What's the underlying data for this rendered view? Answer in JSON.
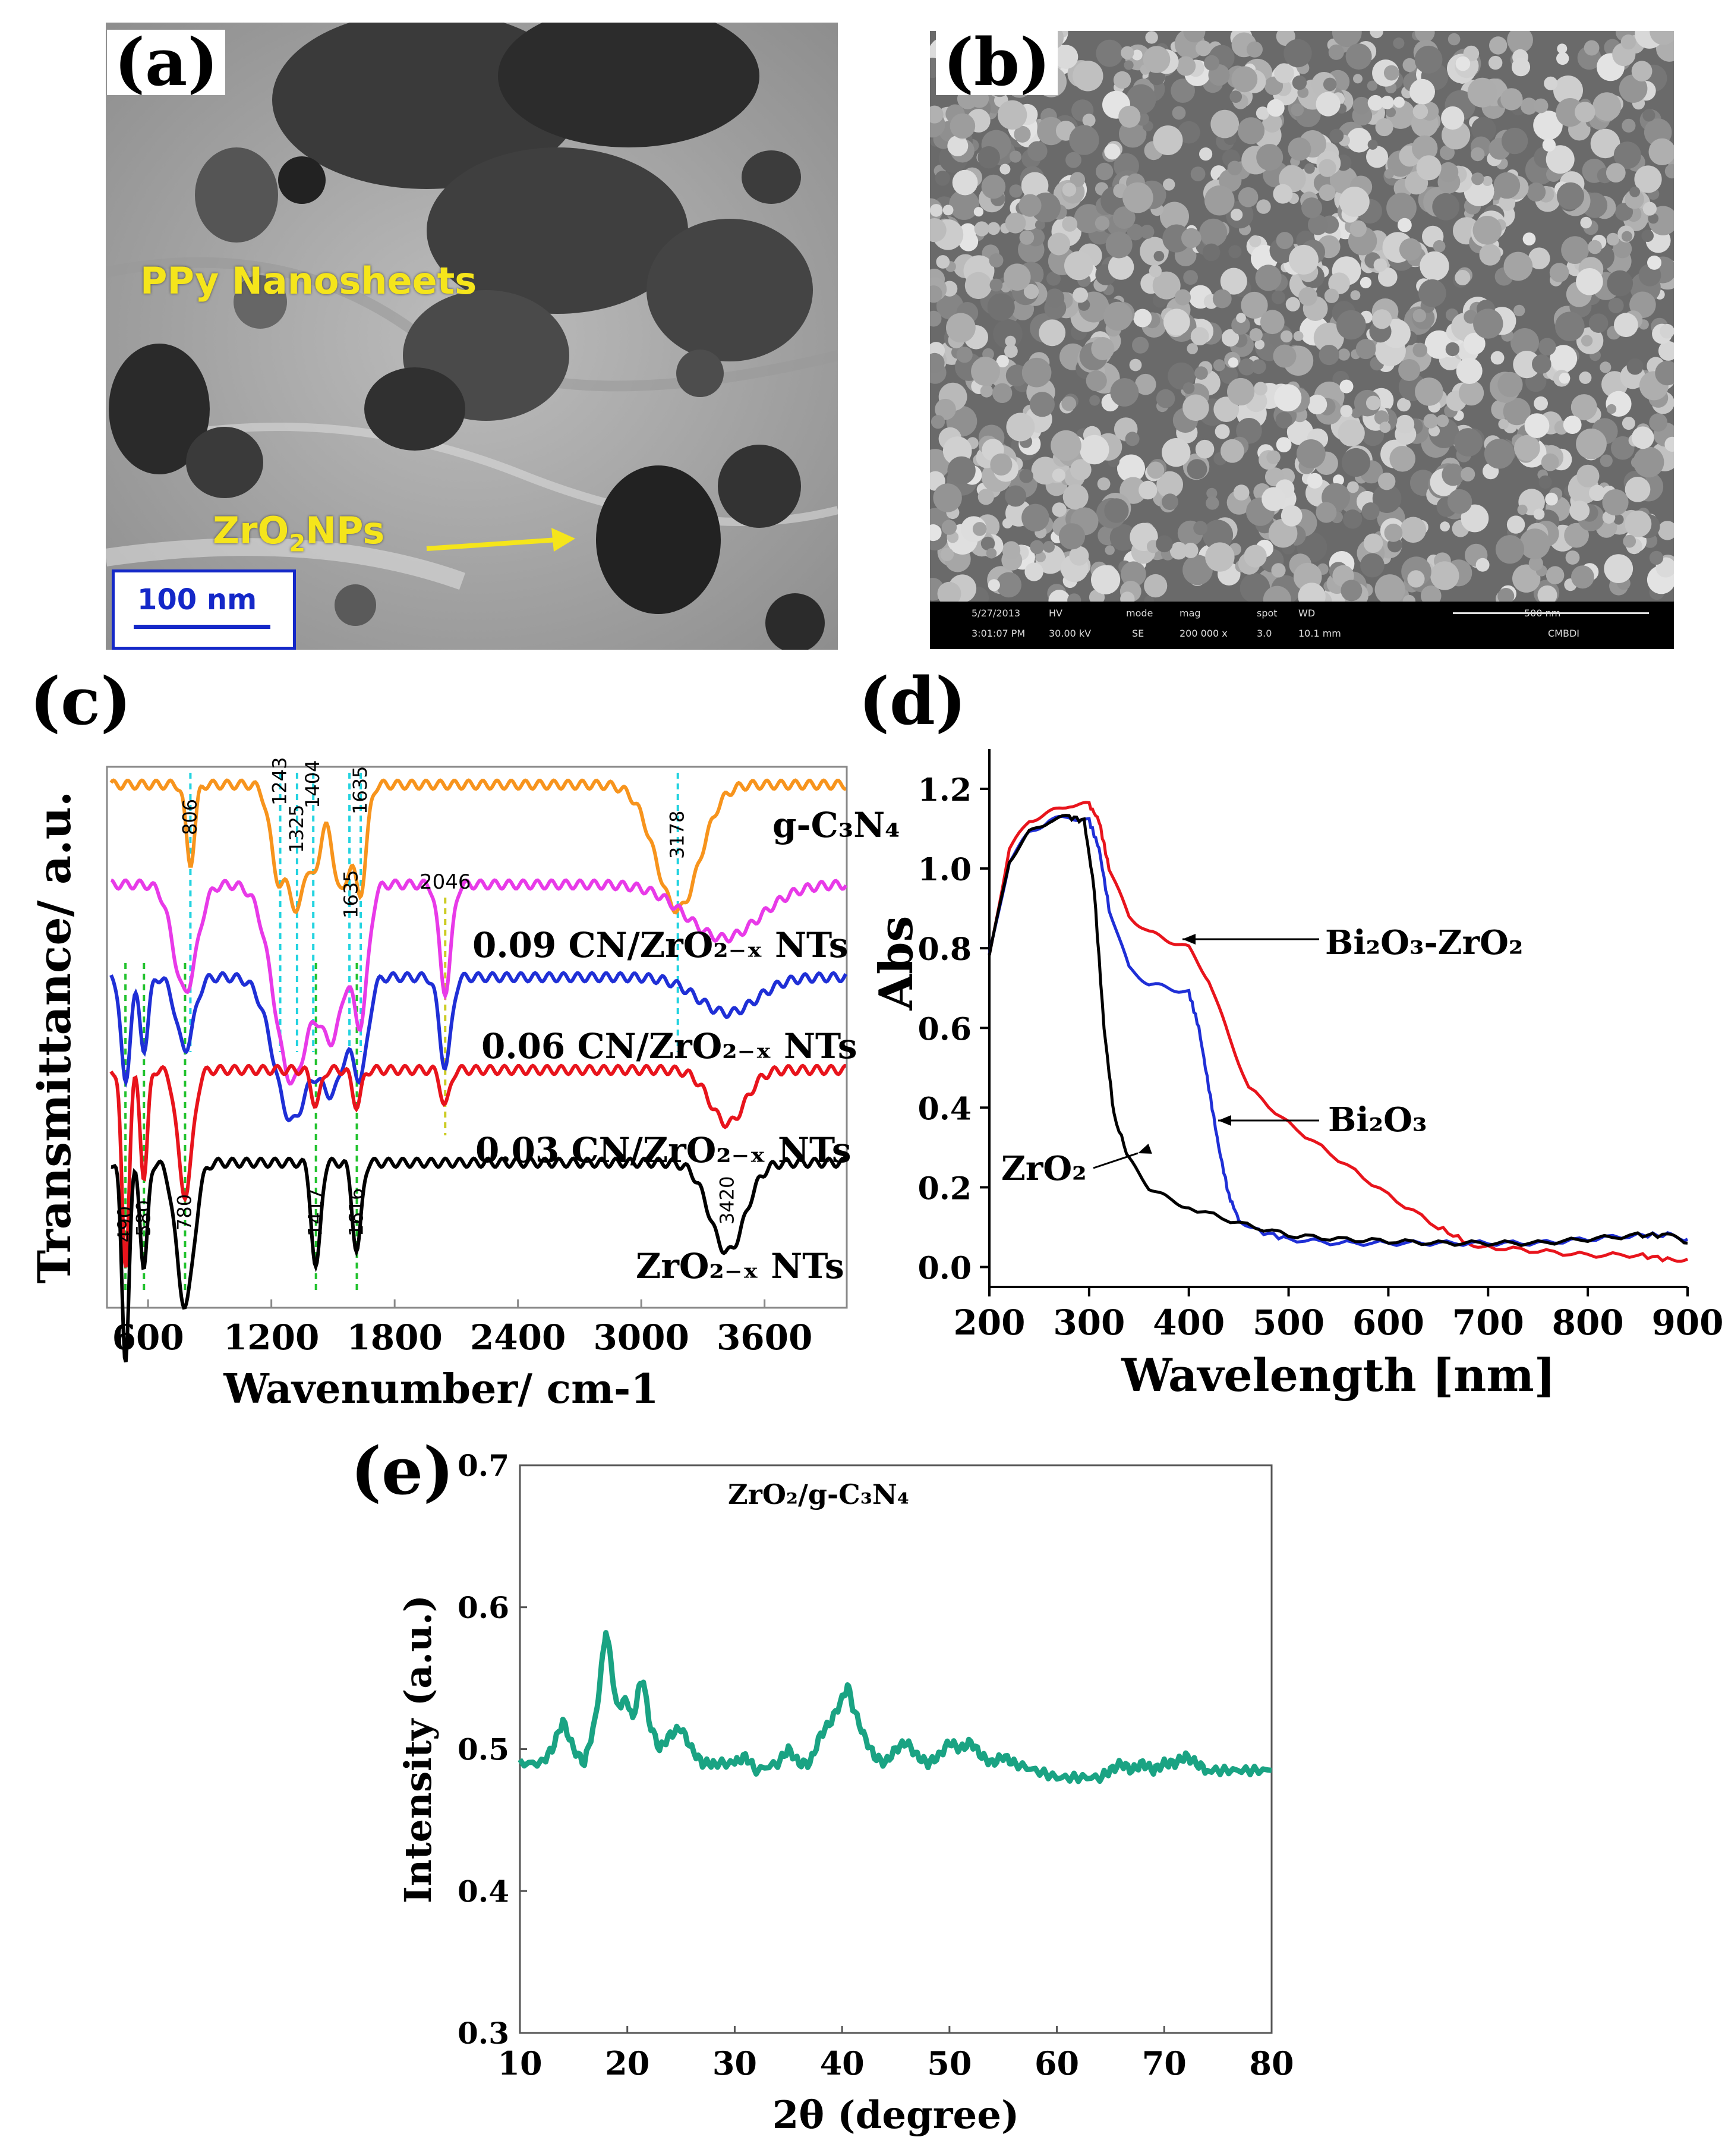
{
  "panels": {
    "a": {
      "letter": "(a)",
      "label_sheets": "PPy Nanosheets",
      "label_np_main": "ZrO",
      "label_np_sub": "2",
      "label_np_tail": "NPs",
      "scale_bar": "100 nm"
    },
    "b": {
      "letter": "(b)",
      "info_bar": [
        "5/27/2013",
        "HV",
        "mode",
        "mag",
        "spot",
        "WD",
        "500 nm",
        "3:01:07 PM",
        "30.00 kV",
        "SE",
        "200 000 x",
        "3.0",
        "10.1 mm",
        "CMBDI"
      ]
    },
    "c": {
      "letter": "(c)"
    },
    "d": {
      "letter": "(d)"
    },
    "e": {
      "letter": "(e)"
    }
  },
  "chart_data": [
    {
      "id": "c",
      "type": "line",
      "xlabel": "Wavenumber/ cm-1",
      "ylabel": "Transmittance/ a.u.",
      "xlim": [
        400,
        4000
      ],
      "xticks": [
        600,
        1200,
        1800,
        2400,
        3000,
        3600
      ],
      "colors": {
        "g-C3N4": "#f7941d",
        "0.09 CN/ZrO2-x NTs": "#e83ae8",
        "0.06 CN/ZrO2-x NTs": "#1f2fd6",
        "0.03 CN/ZrO2-x NTs": "#e8141c",
        "ZrO2-x NTs": "#000000",
        "cyan_lines": "#22d3e0",
        "green_lines": "#22c22e",
        "yellow_lines": "#cccc22"
      },
      "series": [
        {
          "name": "g-C3N4",
          "label": "g-C₃N₄",
          "baseline": 1.0,
          "dips": [
            [
              806,
              0.22,
              30
            ],
            [
              1243,
              0.28,
              60
            ],
            [
              1325,
              0.3,
              40
            ],
            [
              1404,
              0.25,
              50
            ],
            [
              1540,
              0.3,
              60
            ],
            [
              1635,
              0.28,
              40
            ],
            [
              3178,
              0.35,
              150
            ]
          ]
        },
        {
          "name": "0.09 CN/ZrO2-x NTs",
          "label": "0.09 CN/ZrO₂₋ₓ NTs",
          "baseline": 0.72,
          "dips": [
            [
              780,
              0.3,
              80
            ],
            [
              1300,
              0.55,
              120
            ],
            [
              1500,
              0.4,
              90
            ],
            [
              1635,
              0.35,
              50
            ],
            [
              2046,
              0.3,
              40
            ],
            [
              3400,
              0.15,
              250
            ]
          ]
        },
        {
          "name": "0.06 CN/ZrO2-x NTs",
          "label": "0.06 CN/ZrO₂₋ₓ NTs",
          "baseline": 0.46,
          "dips": [
            [
              490,
              0.3,
              30
            ],
            [
              580,
              0.2,
              30
            ],
            [
              780,
              0.2,
              60
            ],
            [
              1300,
              0.4,
              120
            ],
            [
              1500,
              0.3,
              90
            ],
            [
              1635,
              0.25,
              50
            ],
            [
              2046,
              0.25,
              40
            ],
            [
              3420,
              0.1,
              200
            ]
          ]
        },
        {
          "name": "0.03 CN/ZrO2-x NTs",
          "label": "0.03 CN/ZrO₂₋ₓ NTs",
          "baseline": 0.2,
          "dips": [
            [
              490,
              0.55,
              25
            ],
            [
              580,
              0.3,
              25
            ],
            [
              780,
              0.35,
              50
            ],
            [
              1417,
              0.1,
              30
            ],
            [
              1616,
              0.1,
              30
            ],
            [
              2046,
              0.1,
              30
            ],
            [
              3420,
              0.15,
              120
            ]
          ]
        },
        {
          "name": "ZrO2-x NTs",
          "label": "ZrO₂₋ₓ NTs",
          "baseline": -0.06,
          "dips": [
            [
              490,
              0.55,
              25
            ],
            [
              580,
              0.3,
              25
            ],
            [
              780,
              0.4,
              60
            ],
            [
              1417,
              0.3,
              30
            ],
            [
              1616,
              0.25,
              30
            ],
            [
              3420,
              0.25,
              120
            ]
          ]
        }
      ],
      "annotations_top": [
        "806",
        "1243",
        "1325",
        "1404",
        "1635",
        "1635",
        "3178",
        "2046"
      ],
      "annotations_bottom": [
        "490",
        "580",
        "780",
        "1417",
        "1616",
        "3420"
      ]
    },
    {
      "id": "d",
      "type": "line",
      "xlabel": "Wavelength [nm]",
      "ylabel": "Abs",
      "xlim": [
        200,
        900
      ],
      "ylim": [
        -0.05,
        1.3
      ],
      "xticks": [
        200,
        300,
        400,
        500,
        600,
        700,
        800,
        900
      ],
      "yticks": [
        "0.0",
        "0.2",
        "0.4",
        "0.6",
        "0.8",
        "1.0",
        "1.2"
      ],
      "series": [
        {
          "name": "Bi2O3-ZrO2",
          "label": "Bi₂O₃-ZrO₂",
          "color": "#e8141c",
          "x": [
            200,
            220,
            240,
            260,
            280,
            300,
            310,
            320,
            340,
            360,
            380,
            400,
            420,
            440,
            460,
            500,
            550,
            600,
            650,
            680,
            700,
            750,
            800,
            850,
            880,
            900
          ],
          "y": [
            0.78,
            1.05,
            1.12,
            1.14,
            1.16,
            1.16,
            1.12,
            1.0,
            0.88,
            0.84,
            0.82,
            0.8,
            0.72,
            0.58,
            0.45,
            0.36,
            0.27,
            0.18,
            0.1,
            0.06,
            0.05,
            0.04,
            0.03,
            0.03,
            0.02,
            0.02
          ]
        },
        {
          "name": "Bi2O3",
          "label": "Bi₂O₃",
          "color": "#1f2fd6",
          "x": [
            200,
            220,
            240,
            260,
            280,
            300,
            310,
            320,
            340,
            360,
            380,
            400,
            410,
            420,
            430,
            440,
            450,
            470,
            500,
            550,
            600,
            650,
            700,
            750,
            800,
            850,
            880,
            900
          ],
          "y": [
            0.78,
            1.02,
            1.09,
            1.12,
            1.13,
            1.12,
            1.05,
            0.9,
            0.75,
            0.71,
            0.7,
            0.69,
            0.6,
            0.45,
            0.3,
            0.18,
            0.12,
            0.09,
            0.07,
            0.06,
            0.06,
            0.06,
            0.06,
            0.06,
            0.07,
            0.08,
            0.08,
            0.07
          ]
        },
        {
          "name": "ZrO2",
          "label": "ZrO₂",
          "color": "#000000",
          "x": [
            200,
            220,
            240,
            260,
            280,
            295,
            305,
            315,
            325,
            340,
            360,
            380,
            400,
            450,
            500,
            550,
            600,
            650,
            700,
            750,
            800,
            850,
            880,
            900
          ],
          "y": [
            0.78,
            1.02,
            1.09,
            1.12,
            1.13,
            1.12,
            0.95,
            0.6,
            0.38,
            0.27,
            0.2,
            0.17,
            0.15,
            0.11,
            0.08,
            0.07,
            0.065,
            0.06,
            0.06,
            0.06,
            0.07,
            0.08,
            0.08,
            0.06
          ]
        }
      ]
    },
    {
      "id": "e",
      "type": "line",
      "title": "ZrO₂/g-C₃N₄",
      "xlabel": "2θ (degree)",
      "ylabel": "Intensity (a.u.)",
      "xlim": [
        10,
        80
      ],
      "ylim": [
        0.3,
        0.7
      ],
      "xticks": [
        10,
        20,
        30,
        40,
        50,
        60,
        70,
        80
      ],
      "yticks": [
        "0.3",
        "0.4",
        "0.5",
        "0.6",
        "0.7"
      ],
      "series": [
        {
          "name": "ZrO2/g-C3N4",
          "color": "#1aa383",
          "x": [
            10,
            12,
            13,
            14,
            15,
            16,
            17,
            17.5,
            18,
            18.5,
            19,
            20,
            20.5,
            21,
            21.5,
            22,
            23,
            24,
            25,
            26,
            27,
            28,
            30,
            31,
            32,
            34,
            35,
            36,
            37,
            38,
            39,
            40,
            40.5,
            41,
            42,
            43,
            44,
            45,
            46,
            47,
            48,
            49,
            50,
            51,
            52,
            53,
            54,
            55,
            56,
            58,
            60,
            62,
            64,
            65,
            66,
            67,
            68,
            69,
            70,
            71,
            72,
            73,
            74,
            76,
            78,
            80
          ],
          "y": [
            0.49,
            0.49,
            0.5,
            0.52,
            0.5,
            0.49,
            0.52,
            0.55,
            0.585,
            0.56,
            0.53,
            0.535,
            0.52,
            0.54,
            0.55,
            0.52,
            0.5,
            0.51,
            0.515,
            0.5,
            0.49,
            0.49,
            0.49,
            0.495,
            0.485,
            0.49,
            0.5,
            0.49,
            0.49,
            0.51,
            0.52,
            0.535,
            0.545,
            0.53,
            0.51,
            0.495,
            0.49,
            0.5,
            0.505,
            0.495,
            0.49,
            0.495,
            0.505,
            0.5,
            0.505,
            0.495,
            0.49,
            0.495,
            0.49,
            0.485,
            0.48,
            0.48,
            0.48,
            0.485,
            0.49,
            0.485,
            0.49,
            0.485,
            0.49,
            0.49,
            0.495,
            0.49,
            0.485,
            0.485,
            0.485,
            0.485
          ]
        }
      ]
    }
  ]
}
